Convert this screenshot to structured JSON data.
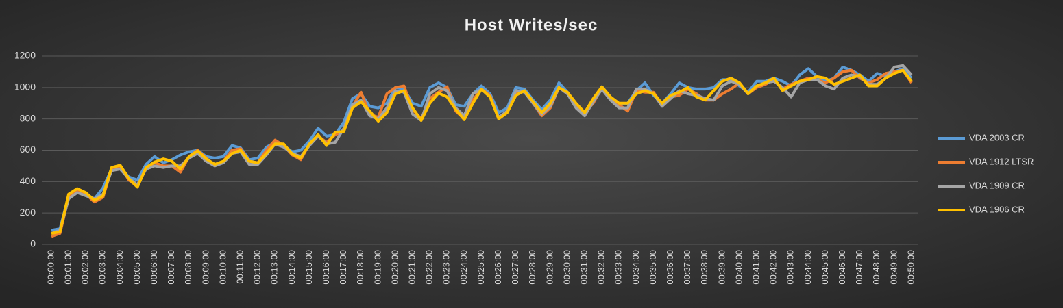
{
  "chart_data": {
    "type": "line",
    "title": "Host Writes/sec",
    "categories": [
      "00:00:00",
      null,
      "00:01:00",
      null,
      "00:02:00",
      null,
      "00:03:00",
      null,
      "00:04:00",
      null,
      "00:05:00",
      null,
      "00:06:00",
      null,
      "00:07:00",
      null,
      "00:08:00",
      null,
      "00:09:00",
      null,
      "00:10:00",
      null,
      "00:11:00",
      null,
      "00:12:00",
      null,
      "00:13:00",
      null,
      "00:14:00",
      null,
      "00:15:00",
      null,
      "00:16:00",
      null,
      "00:17:00",
      null,
      "00:18:00",
      null,
      "00:19:00",
      null,
      "00:20:00",
      null,
      "00:21:00",
      null,
      "00:22:00",
      null,
      "00:23:00",
      null,
      "00:24:00",
      null,
      "00:25:00",
      null,
      "00:26:00",
      null,
      "00:27:00",
      null,
      "00:28:00",
      null,
      "00:29:00",
      null,
      "00:30:00",
      null,
      "00:31:00",
      null,
      "00:32:00",
      null,
      "00:33:00",
      null,
      "00:34:00",
      null,
      "00:35:00",
      null,
      "00:36:00",
      null,
      "00:37:00",
      null,
      "00:38:00",
      null,
      "00:39:00",
      null,
      "00:40:00",
      null,
      "00:41:00",
      null,
      "00:42:00",
      null,
      "00:43:00",
      null,
      "00:44:00",
      null,
      "00:45:00",
      null,
      "00:46:00",
      null,
      "00:47:00",
      null,
      "00:48:00",
      null,
      "00:49:00",
      null,
      "00:50:00"
    ],
    "series": [
      {
        "name": "VDA 2003 CR",
        "color": "#5b9bd5",
        "values": [
          90,
          100,
          310,
          350,
          320,
          290,
          360,
          480,
          490,
          430,
          410,
          510,
          560,
          520,
          540,
          570,
          590,
          600,
          560,
          550,
          560,
          630,
          615,
          540,
          550,
          620,
          650,
          630,
          590,
          600,
          660,
          740,
          690,
          700,
          780,
          930,
          960,
          880,
          870,
          900,
          1000,
          990,
          900,
          880,
          1000,
          1030,
          1000,
          890,
          880,
          960,
          1010,
          960,
          840,
          870,
          1000,
          990,
          920,
          860,
          920,
          1030,
          970,
          880,
          830,
          920,
          1005,
          940,
          890,
          900,
          980,
          1030,
          950,
          900,
          960,
          1030,
          1000,
          990,
          990,
          1000,
          1050,
          1050,
          1010,
          970,
          1040,
          1040,
          1060,
          1040,
          1010,
          1080,
          1120,
          1070,
          1040,
          1060,
          1130,
          1110,
          1080,
          1040,
          1090,
          1070,
          1100,
          1120,
          1060
        ]
      },
      {
        "name": "VDA 1912 LTSR",
        "color": "#ed7d31",
        "values": [
          50,
          70,
          300,
          350,
          320,
          270,
          300,
          480,
          500,
          410,
          370,
          490,
          520,
          500,
          500,
          460,
          560,
          600,
          550,
          500,
          530,
          600,
          610,
          530,
          520,
          600,
          665,
          630,
          570,
          540,
          640,
          690,
          650,
          700,
          720,
          880,
          970,
          830,
          810,
          960,
          1000,
          1010,
          860,
          800,
          930,
          970,
          1005,
          850,
          800,
          920,
          990,
          950,
          800,
          850,
          960,
          980,
          900,
          820,
          870,
          1000,
          960,
          890,
          840,
          900,
          1000,
          940,
          890,
          850,
          980,
          970,
          970,
          890,
          940,
          950,
          990,
          960,
          920,
          920,
          960,
          990,
          1030,
          960,
          1000,
          1020,
          1050,
          990,
          1020,
          1040,
          1060,
          1050,
          1030,
          1060,
          1100,
          1110,
          1060,
          1030,
          1050,
          1090,
          1100,
          1110,
          1030
        ]
      },
      {
        "name": "VDA 1909 CR",
        "color": "#a5a5a5",
        "values": [
          70,
          90,
          290,
          330,
          310,
          290,
          320,
          470,
          480,
          420,
          380,
          480,
          500,
          490,
          500,
          500,
          550,
          580,
          530,
          500,
          520,
          580,
          590,
          510,
          510,
          570,
          640,
          620,
          580,
          560,
          630,
          690,
          640,
          650,
          740,
          890,
          920,
          820,
          800,
          870,
          980,
          970,
          830,
          790,
          960,
          1000,
          980,
          870,
          820,
          960,
          990,
          940,
          810,
          850,
          980,
          970,
          900,
          830,
          880,
          1000,
          960,
          870,
          820,
          910,
          990,
          920,
          870,
          870,
          990,
          990,
          960,
          880,
          930,
          980,
          960,
          950,
          930,
          920,
          1010,
          1040,
          1020,
          960,
          1010,
          1030,
          1040,
          1000,
          940,
          1030,
          1050,
          1050,
          1010,
          990,
          1060,
          1080,
          1070,
          1020,
          1020,
          1060,
          1130,
          1140,
          1080
        ]
      },
      {
        "name": "VDA 1906 CR",
        "color": "#ffc000",
        "values": [
          70,
          80,
          320,
          355,
          330,
          280,
          310,
          490,
          505,
          420,
          365,
          490,
          525,
          545,
          530,
          480,
          560,
          595,
          545,
          510,
          530,
          580,
          600,
          530,
          520,
          580,
          640,
          640,
          575,
          550,
          640,
          700,
          630,
          715,
          720,
          870,
          910,
          850,
          785,
          840,
          960,
          980,
          870,
          790,
          900,
          965,
          940,
          860,
          795,
          900,
          990,
          940,
          800,
          840,
          950,
          980,
          910,
          840,
          900,
          1000,
          970,
          900,
          840,
          930,
          1005,
          940,
          900,
          900,
          960,
          980,
          960,
          900,
          950,
          970,
          1000,
          940,
          920,
          980,
          1040,
          1060,
          1030,
          960,
          1010,
          1030,
          1060,
          980,
          1010,
          1040,
          1050,
          1070,
          1060,
          1020,
          1040,
          1060,
          1080,
          1010,
          1010,
          1060,
          1090,
          1110,
          1040
        ]
      }
    ],
    "ylim": [
      0,
      1200
    ],
    "yticks": [
      0,
      200,
      400,
      600,
      800,
      1000,
      1200
    ],
    "grid": true,
    "legend": "right"
  }
}
